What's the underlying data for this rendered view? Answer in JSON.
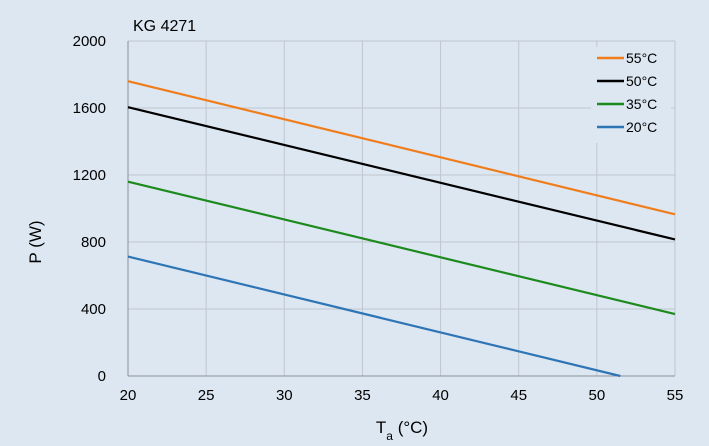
{
  "chart_data": {
    "type": "line",
    "title": "KG 4271",
    "xlabel": "T",
    "xlabel_sub": "a",
    "xlabel_unit": " (°C)",
    "ylabel": "P (W)",
    "xlim": [
      20,
      55
    ],
    "ylim": [
      0,
      2000
    ],
    "x_ticks": [
      20,
      25,
      30,
      35,
      40,
      45,
      50,
      55
    ],
    "y_ticks": [
      0,
      400,
      800,
      1200,
      1600,
      2000
    ],
    "grid": true,
    "legend_position": "top-right",
    "background": "#dde7f2",
    "series": [
      {
        "name": "55°C",
        "color": "#f07d1b",
        "x": [
          20,
          55
        ],
        "y": [
          1760,
          965
        ]
      },
      {
        "name": "50°C",
        "color": "#000000",
        "x": [
          20,
          55
        ],
        "y": [
          1605,
          815
        ]
      },
      {
        "name": "35°C",
        "color": "#1d8a1d",
        "x": [
          20,
          55
        ],
        "y": [
          1160,
          370
        ]
      },
      {
        "name": "20°C",
        "color": "#2e75b6",
        "x": [
          20,
          51.5
        ],
        "y": [
          713,
          0
        ]
      }
    ]
  }
}
